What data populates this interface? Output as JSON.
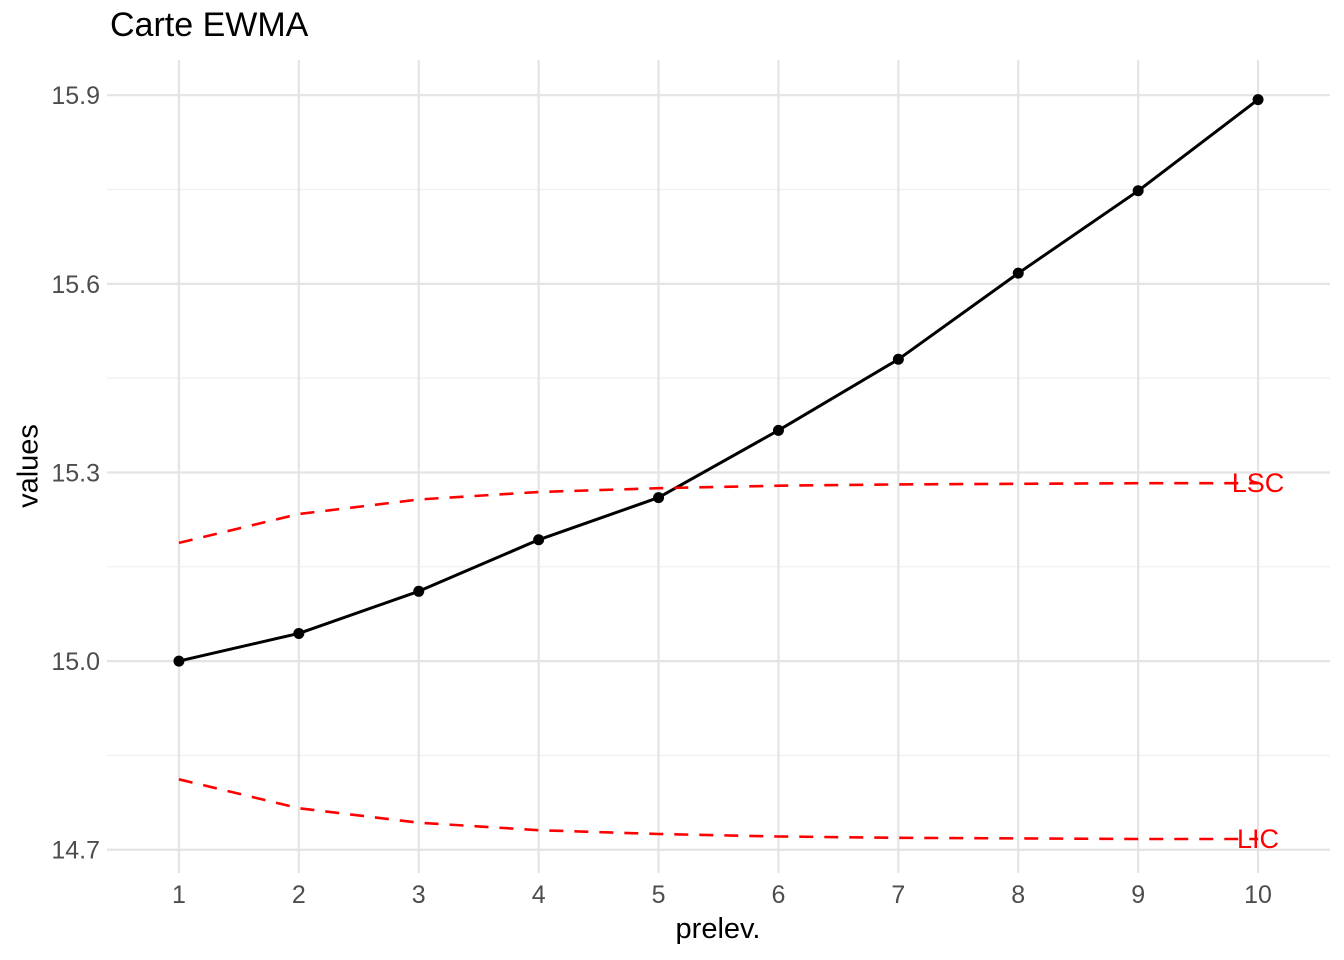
{
  "chart_data": {
    "type": "line",
    "title": "Carte EWMA",
    "xlabel": "prelev.",
    "ylabel": "values",
    "x": [
      1,
      2,
      3,
      4,
      5,
      6,
      7,
      8,
      9,
      10
    ],
    "series": [
      {
        "name": "EWMA",
        "color": "#000000",
        "style": "solid",
        "points": true,
        "values": [
          15.0,
          15.044,
          15.111,
          15.193,
          15.26,
          15.367,
          15.48,
          15.617,
          15.748,
          15.893
        ]
      },
      {
        "name": "LSC",
        "color": "#FF0000",
        "style": "dashed",
        "points": false,
        "values": [
          15.188,
          15.234,
          15.257,
          15.269,
          15.275,
          15.279,
          15.281,
          15.282,
          15.283,
          15.283
        ]
      },
      {
        "name": "LIC",
        "color": "#FF0000",
        "style": "dashed",
        "points": false,
        "values": [
          14.812,
          14.766,
          14.743,
          14.731,
          14.725,
          14.721,
          14.719,
          14.718,
          14.717,
          14.717
        ]
      }
    ],
    "annotations": [
      {
        "text": "LSC",
        "x": 10,
        "y": 15.283,
        "color": "#FF0000"
      },
      {
        "text": "LIC",
        "x": 10,
        "y": 14.717,
        "color": "#FF0000"
      }
    ],
    "x_ticks": [
      {
        "v": 1,
        "label": "1"
      },
      {
        "v": 2,
        "label": "2"
      },
      {
        "v": 3,
        "label": "3"
      },
      {
        "v": 4,
        "label": "4"
      },
      {
        "v": 5,
        "label": "5"
      },
      {
        "v": 6,
        "label": "6"
      },
      {
        "v": 7,
        "label": "7"
      },
      {
        "v": 8,
        "label": "8"
      },
      {
        "v": 9,
        "label": "9"
      },
      {
        "v": 10,
        "label": "10"
      }
    ],
    "y_ticks": [
      {
        "v": 14.7,
        "label": "14.7"
      },
      {
        "v": 15.0,
        "label": "15.0"
      },
      {
        "v": 15.3,
        "label": "15.3"
      },
      {
        "v": 15.6,
        "label": "15.6"
      },
      {
        "v": 15.9,
        "label": "15.9"
      }
    ],
    "y_minor_ticks": [
      14.85,
      15.15,
      15.45,
      15.75
    ],
    "xlim": [
      0.4,
      10.6
    ],
    "ylim": [
      14.663,
      15.956
    ],
    "grid": "vertical-major, horizontal-major+minor",
    "legend_position": "none",
    "colors": {
      "background": "#FFFFFF",
      "grid_major": "#E4E4E4",
      "grid_minor": "#EFEFEF",
      "tick_text": "#4D4D4D",
      "series_main": "#000000",
      "limits": "#FF0000"
    }
  }
}
